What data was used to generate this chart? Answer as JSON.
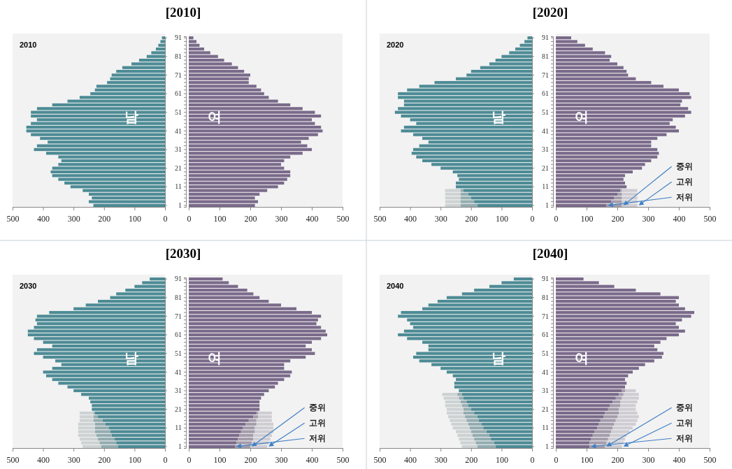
{
  "chart_data": [
    {
      "type": "bar",
      "orientation": "horizontal",
      "title": "[2010]",
      "subtitle": "2010",
      "tick_labels": "x",
      "xlim": [
        500,
        0
      ],
      "xticks": [
        500,
        400,
        300,
        200,
        100,
        0
      ],
      "categories": [
        "91",
        null,
        null,
        null,
        null,
        "81",
        null,
        null,
        null,
        null,
        "71",
        null,
        null,
        null,
        null,
        "61",
        null,
        null,
        null,
        null,
        "51",
        null,
        null,
        null,
        null,
        "41",
        null,
        null,
        null,
        null,
        "31",
        null,
        null,
        null,
        null,
        "21",
        null,
        null,
        null,
        null,
        "11",
        null,
        null,
        null,
        null,
        "1"
      ],
      "annotations": [
        "남"
      ],
      "series": [
        {
          "color": "#4d8b95",
          "values": [
            10,
            15,
            22,
            30,
            45,
            60,
            85,
            110,
            140,
            160,
            175,
            180,
            190,
            225,
            230,
            245,
            280,
            320,
            370,
            420,
            440,
            440,
            420,
            440,
            455,
            455,
            440,
            410,
            385,
            420,
            430,
            390,
            350,
            340,
            350,
            370,
            375,
            370,
            350,
            330,
            310,
            270,
            250,
            240,
            250,
            235
          ]
        }
      ]
    },
    {
      "type": "bar",
      "orientation": "horizontal",
      "xlim": [
        0,
        500
      ],
      "xticks": [
        0,
        100,
        200,
        300,
        400,
        500
      ],
      "categories": [
        "91",
        null,
        null,
        null,
        null,
        "81",
        null,
        null,
        null,
        null,
        "71",
        null,
        null,
        null,
        null,
        "61",
        null,
        null,
        null,
        null,
        "51",
        null,
        null,
        null,
        null,
        "41",
        null,
        null,
        null,
        null,
        "31",
        null,
        null,
        null,
        null,
        "21",
        null,
        null,
        null,
        null,
        "11",
        null,
        null,
        null,
        null,
        "1"
      ],
      "annotations": [
        "여"
      ],
      "series": [
        {
          "color": "#7a6a8a",
          "values": [
            15,
            25,
            35,
            50,
            70,
            95,
            115,
            140,
            160,
            180,
            200,
            195,
            195,
            220,
            235,
            245,
            260,
            290,
            330,
            370,
            410,
            430,
            400,
            410,
            430,
            435,
            420,
            390,
            365,
            385,
            400,
            370,
            330,
            310,
            300,
            310,
            330,
            330,
            320,
            310,
            290,
            255,
            230,
            215,
            225,
            215
          ]
        }
      ]
    },
    {
      "type": "bar",
      "orientation": "horizontal",
      "title": "[2020]",
      "subtitle": "2020",
      "tick_labels": "x",
      "xlim": [
        500,
        0
      ],
      "xticks": [
        500,
        400,
        300,
        200,
        100,
        0
      ],
      "categories": [
        "91",
        null,
        null,
        null,
        null,
        "81",
        null,
        null,
        null,
        null,
        "71",
        null,
        null,
        null,
        null,
        "61",
        null,
        null,
        null,
        null,
        "51",
        null,
        null,
        null,
        null,
        "41",
        null,
        null,
        null,
        null,
        "31",
        null,
        null,
        null,
        null,
        "21",
        null,
        null,
        null,
        null,
        "11",
        null,
        null,
        null,
        null,
        "1"
      ],
      "annotations": [
        "남"
      ],
      "stacked": true,
      "series": [
        {
          "color": "#4d8b95",
          "values": [
            15,
            25,
            40,
            55,
            75,
            100,
            120,
            140,
            170,
            200,
            215,
            250,
            320,
            370,
            410,
            440,
            440,
            420,
            420,
            440,
            450,
            430,
            400,
            380,
            420,
            430,
            390,
            360,
            340,
            370,
            390,
            395,
            380,
            360,
            330,
            300,
            260,
            245,
            240,
            250,
            250,
            225,
            210,
            200,
            190,
            180
          ]
        },
        {
          "color": "#93acb0",
          "values": [
            null,
            null,
            null,
            null,
            null,
            null,
            null,
            null,
            null,
            null,
            null,
            null,
            null,
            null,
            null,
            null,
            null,
            null,
            null,
            null,
            null,
            null,
            null,
            null,
            null,
            null,
            null,
            null,
            null,
            null,
            null,
            null,
            null,
            null,
            null,
            null,
            null,
            null,
            null,
            null,
            null,
            10,
            25,
            35,
            45,
            55
          ]
        },
        {
          "color": "#cdd2d3",
          "values": [
            null,
            null,
            null,
            null,
            null,
            null,
            null,
            null,
            null,
            null,
            null,
            null,
            null,
            null,
            null,
            null,
            null,
            null,
            null,
            null,
            null,
            null,
            null,
            null,
            null,
            null,
            null,
            null,
            null,
            null,
            null,
            null,
            null,
            null,
            null,
            null,
            null,
            null,
            null,
            null,
            null,
            50,
            50,
            50,
            50,
            50
          ]
        }
      ]
    },
    {
      "type": "bar",
      "orientation": "horizontal",
      "xlim": [
        0,
        500
      ],
      "xticks": [
        0,
        100,
        200,
        300,
        400,
        500
      ],
      "categories": [
        "91",
        null,
        null,
        null,
        null,
        "81",
        null,
        null,
        null,
        null,
        "71",
        null,
        null,
        null,
        null,
        "61",
        null,
        null,
        null,
        null,
        "51",
        null,
        null,
        null,
        null,
        "41",
        null,
        null,
        null,
        null,
        "31",
        null,
        null,
        null,
        null,
        "21",
        null,
        null,
        null,
        null,
        "11",
        null,
        null,
        null,
        null,
        "1"
      ],
      "annotations": [
        "여",
        {
          "text": "중위",
          "x": 215,
          "y": "1"
        },
        {
          "text": "고위",
          "x": 265,
          "y": "1"
        },
        {
          "text": "저위",
          "x": 165,
          "y": "1"
        }
      ],
      "stacked": true,
      "series": [
        {
          "color": "#7a6a8a",
          "values": [
            50,
            70,
            95,
            120,
            160,
            180,
            175,
            200,
            220,
            230,
            235,
            260,
            310,
            350,
            400,
            435,
            440,
            410,
            405,
            430,
            440,
            420,
            380,
            370,
            390,
            400,
            360,
            330,
            310,
            310,
            330,
            335,
            330,
            310,
            290,
            280,
            250,
            225,
            220,
            225,
            230,
            210,
            200,
            190,
            180,
            165
          ]
        },
        {
          "color": "#a49cab",
          "values": [
            null,
            null,
            null,
            null,
            null,
            null,
            null,
            null,
            null,
            null,
            null,
            null,
            null,
            null,
            null,
            null,
            null,
            null,
            null,
            null,
            null,
            null,
            null,
            null,
            null,
            null,
            null,
            null,
            null,
            null,
            null,
            null,
            null,
            null,
            null,
            null,
            null,
            null,
            null,
            null,
            null,
            5,
            15,
            25,
            35,
            50
          ]
        },
        {
          "color": "#cfcdd3",
          "values": [
            null,
            null,
            null,
            null,
            null,
            null,
            null,
            null,
            null,
            null,
            null,
            null,
            null,
            null,
            null,
            null,
            null,
            null,
            null,
            null,
            null,
            null,
            null,
            null,
            null,
            null,
            null,
            null,
            null,
            null,
            null,
            null,
            null,
            null,
            null,
            null,
            null,
            null,
            null,
            null,
            null,
            50,
            50,
            50,
            50,
            50
          ]
        }
      ]
    },
    {
      "type": "bar",
      "orientation": "horizontal",
      "title": "[2030]",
      "subtitle": "2030",
      "tick_labels": "x",
      "xlim": [
        500,
        0
      ],
      "xticks": [
        500,
        400,
        300,
        200,
        100,
        0
      ],
      "categories": [
        "91",
        null,
        null,
        null,
        null,
        "81",
        null,
        null,
        null,
        null,
        "71",
        null,
        null,
        null,
        null,
        "61",
        null,
        null,
        null,
        null,
        "51",
        null,
        null,
        null,
        null,
        "41",
        null,
        null,
        null,
        null,
        "31",
        null,
        null,
        null,
        null,
        "21",
        null,
        null,
        null,
        null,
        "11",
        null,
        null,
        null,
        null,
        "1"
      ],
      "annotations": [
        "남"
      ],
      "stacked": true,
      "series": [
        {
          "color": "#4d8b95",
          "values": [
            50,
            75,
            100,
            130,
            160,
            180,
            220,
            260,
            300,
            380,
            420,
            425,
            420,
            430,
            450,
            450,
            430,
            400,
            370,
            420,
            430,
            400,
            360,
            340,
            370,
            400,
            390,
            370,
            350,
            320,
            300,
            275,
            250,
            245,
            240,
            240,
            230,
            220,
            205,
            195,
            185,
            180,
            175,
            165,
            160,
            155
          ]
        },
        {
          "color": "#93acb0",
          "values": [
            null,
            null,
            null,
            null,
            null,
            null,
            null,
            null,
            null,
            null,
            null,
            null,
            null,
            null,
            null,
            null,
            null,
            null,
            null,
            null,
            null,
            null,
            null,
            null,
            null,
            null,
            null,
            null,
            null,
            null,
            null,
            null,
            null,
            null,
            null,
            null,
            5,
            15,
            30,
            35,
            45,
            50,
            50,
            55,
            55,
            55
          ]
        },
        {
          "color": "#cdd2d3",
          "values": [
            null,
            null,
            null,
            null,
            null,
            null,
            null,
            null,
            null,
            null,
            null,
            null,
            null,
            null,
            null,
            null,
            null,
            null,
            null,
            null,
            null,
            null,
            null,
            null,
            null,
            null,
            null,
            null,
            null,
            null,
            null,
            null,
            null,
            null,
            null,
            null,
            45,
            45,
            45,
            55,
            55,
            55,
            60,
            60,
            60,
            60
          ]
        }
      ]
    },
    {
      "type": "bar",
      "orientation": "horizontal",
      "xlim": [
        0,
        500
      ],
      "xticks": [
        0,
        100,
        200,
        300,
        400,
        500
      ],
      "categories": [
        "91",
        null,
        null,
        null,
        null,
        "81",
        null,
        null,
        null,
        null,
        "71",
        null,
        null,
        null,
        null,
        "61",
        null,
        null,
        null,
        null,
        "51",
        null,
        null,
        null,
        null,
        "41",
        null,
        null,
        null,
        null,
        "31",
        null,
        null,
        null,
        null,
        "21",
        null,
        null,
        null,
        null,
        "11",
        null,
        null,
        null,
        null,
        "1"
      ],
      "annotations": [
        "여",
        {
          "text": "중위",
          "x": 200,
          "y": "1"
        },
        {
          "text": "고위",
          "x": 255,
          "y": "1"
        },
        {
          "text": "저위",
          "x": 150,
          "y": "1"
        }
      ],
      "stacked": true,
      "series": [
        {
          "color": "#7a6a8a",
          "values": [
            110,
            130,
            160,
            190,
            210,
            230,
            260,
            300,
            350,
            400,
            430,
            420,
            415,
            430,
            445,
            450,
            430,
            400,
            380,
            400,
            410,
            380,
            330,
            310,
            310,
            335,
            330,
            310,
            290,
            280,
            260,
            245,
            235,
            230,
            230,
            230,
            220,
            210,
            195,
            185,
            175,
            170,
            165,
            160,
            155,
            150
          ]
        },
        {
          "color": "#a49cab",
          "values": [
            null,
            null,
            null,
            null,
            null,
            null,
            null,
            null,
            null,
            null,
            null,
            null,
            null,
            null,
            null,
            null,
            null,
            null,
            null,
            null,
            null,
            null,
            null,
            null,
            null,
            null,
            null,
            null,
            null,
            null,
            null,
            null,
            null,
            null,
            null,
            null,
            5,
            15,
            25,
            35,
            40,
            45,
            45,
            50,
            50,
            50
          ]
        },
        {
          "color": "#cfcdd3",
          "values": [
            null,
            null,
            null,
            null,
            null,
            null,
            null,
            null,
            null,
            null,
            null,
            null,
            null,
            null,
            null,
            null,
            null,
            null,
            null,
            null,
            null,
            null,
            null,
            null,
            null,
            null,
            null,
            null,
            null,
            null,
            null,
            null,
            null,
            null,
            null,
            null,
            45,
            45,
            50,
            55,
            60,
            60,
            60,
            55,
            55,
            55
          ]
        }
      ]
    },
    {
      "type": "bar",
      "orientation": "horizontal",
      "title": "[2040]",
      "subtitle": "2040",
      "tick_labels": "x",
      "xlim": [
        500,
        0
      ],
      "xticks": [
        500,
        400,
        300,
        200,
        100,
        0
      ],
      "categories": [
        "91",
        null,
        null,
        null,
        null,
        "81",
        null,
        null,
        null,
        null,
        "71",
        null,
        null,
        null,
        null,
        "61",
        null,
        null,
        null,
        null,
        "51",
        null,
        null,
        null,
        null,
        "41",
        null,
        null,
        null,
        null,
        "31",
        null,
        null,
        null,
        null,
        "21",
        null,
        null,
        null,
        null,
        "11",
        null,
        null,
        null,
        null,
        "1"
      ],
      "annotations": [
        "남"
      ],
      "stacked": true,
      "series": [
        {
          "color": "#4d8b95",
          "values": [
            60,
            100,
            140,
            190,
            230,
            280,
            310,
            340,
            360,
            430,
            440,
            410,
            400,
            390,
            420,
            440,
            410,
            360,
            340,
            340,
            380,
            390,
            370,
            330,
            300,
            280,
            260,
            250,
            255,
            255,
            240,
            230,
            225,
            215,
            210,
            200,
            190,
            180,
            175,
            165,
            160,
            150,
            140,
            135,
            125,
            120
          ]
        },
        {
          "color": "#93acb0",
          "values": [
            null,
            null,
            null,
            null,
            null,
            null,
            null,
            null,
            null,
            null,
            null,
            null,
            null,
            null,
            null,
            null,
            null,
            null,
            null,
            null,
            null,
            null,
            null,
            null,
            null,
            null,
            null,
            null,
            null,
            null,
            null,
            15,
            15,
            20,
            20,
            25,
            35,
            40,
            40,
            45,
            45,
            50,
            55,
            55,
            60,
            60
          ]
        },
        {
          "color": "#cdd2d3",
          "values": [
            null,
            null,
            null,
            null,
            null,
            null,
            null,
            null,
            null,
            null,
            null,
            null,
            null,
            null,
            null,
            null,
            null,
            null,
            null,
            null,
            null,
            null,
            null,
            null,
            null,
            null,
            null,
            null,
            null,
            null,
            null,
            50,
            50,
            50,
            55,
            55,
            55,
            55,
            55,
            55,
            55,
            50,
            50,
            50,
            50,
            50
          ]
        }
      ]
    },
    {
      "type": "bar",
      "orientation": "horizontal",
      "xlim": [
        0,
        500
      ],
      "xticks": [
        0,
        100,
        200,
        300,
        400,
        500
      ],
      "categories": [
        "91",
        null,
        null,
        null,
        null,
        "81",
        null,
        null,
        null,
        null,
        "71",
        null,
        null,
        null,
        null,
        "61",
        null,
        null,
        null,
        null,
        "51",
        null,
        null,
        null,
        null,
        "41",
        null,
        null,
        null,
        null,
        "31",
        null,
        null,
        null,
        null,
        "21",
        null,
        null,
        null,
        null,
        "11",
        null,
        null,
        null,
        null,
        "1"
      ],
      "annotations": [
        "여",
        {
          "text": "중위",
          "x": 160,
          "y": "1"
        },
        {
          "text": "고위",
          "x": 215,
          "y": "1"
        },
        {
          "text": "저위",
          "x": 110,
          "y": "1"
        }
      ],
      "stacked": true,
      "series": [
        {
          "color": "#7a6a8a",
          "values": [
            90,
            140,
            190,
            260,
            340,
            400,
            390,
            400,
            420,
            450,
            440,
            410,
            390,
            400,
            420,
            400,
            360,
            340,
            320,
            330,
            350,
            345,
            320,
            290,
            270,
            250,
            235,
            225,
            230,
            225,
            215,
            205,
            195,
            185,
            175,
            170,
            160,
            155,
            145,
            140,
            135,
            125,
            120,
            115,
            110,
            110
          ]
        },
        {
          "color": "#a49cab",
          "values": [
            null,
            null,
            null,
            null,
            null,
            null,
            null,
            null,
            null,
            null,
            null,
            null,
            null,
            null,
            null,
            null,
            null,
            null,
            null,
            null,
            null,
            null,
            null,
            null,
            null,
            null,
            null,
            null,
            null,
            null,
            10,
            15,
            20,
            25,
            35,
            35,
            45,
            45,
            50,
            50,
            50,
            55,
            55,
            55,
            55,
            50
          ]
        },
        {
          "color": "#cfcdd3",
          "values": [
            null,
            null,
            null,
            null,
            null,
            null,
            null,
            null,
            null,
            null,
            null,
            null,
            null,
            null,
            null,
            null,
            null,
            null,
            null,
            null,
            null,
            null,
            null,
            null,
            null,
            null,
            null,
            null,
            null,
            null,
            35,
            50,
            55,
            55,
            50,
            55,
            60,
            70,
            70,
            70,
            65,
            60,
            55,
            55,
            55,
            55
          ]
        }
      ]
    }
  ]
}
